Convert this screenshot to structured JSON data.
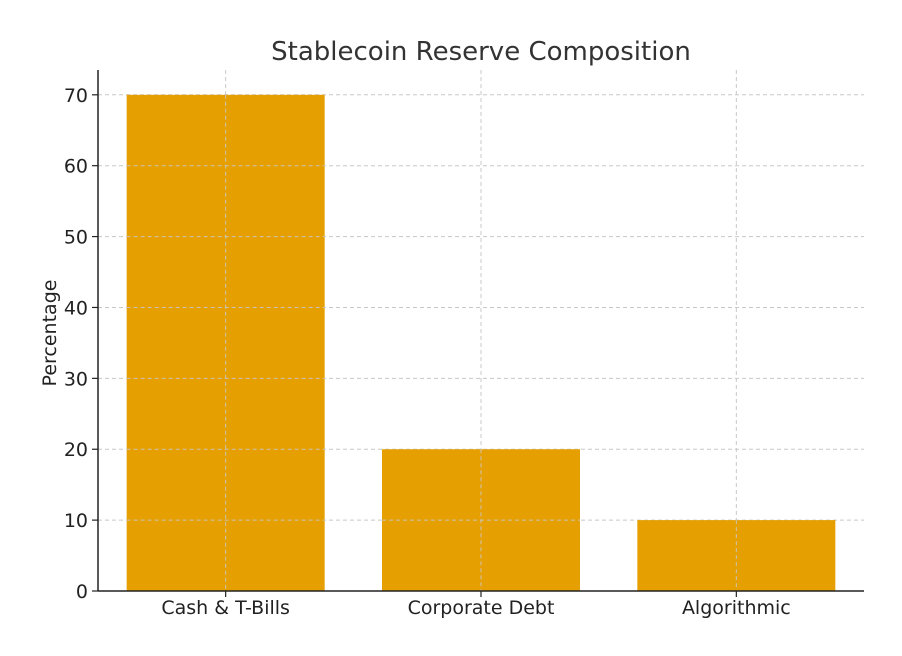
{
  "chart_data": {
    "type": "bar",
    "title": "Stablecoin Reserve Composition",
    "xlabel": "",
    "ylabel": "Percentage",
    "categories": [
      "Cash & T-Bills",
      "Corporate Debt",
      "Algorithmic"
    ],
    "values": [
      70,
      20,
      10
    ],
    "ylim": [
      0,
      73.5
    ],
    "yticks": [
      0,
      10,
      20,
      30,
      40,
      50,
      60,
      70
    ],
    "grid": true,
    "bar_color": "#E69F00",
    "grid_color": "#c8c8c8",
    "axis_color": "#222222"
  }
}
